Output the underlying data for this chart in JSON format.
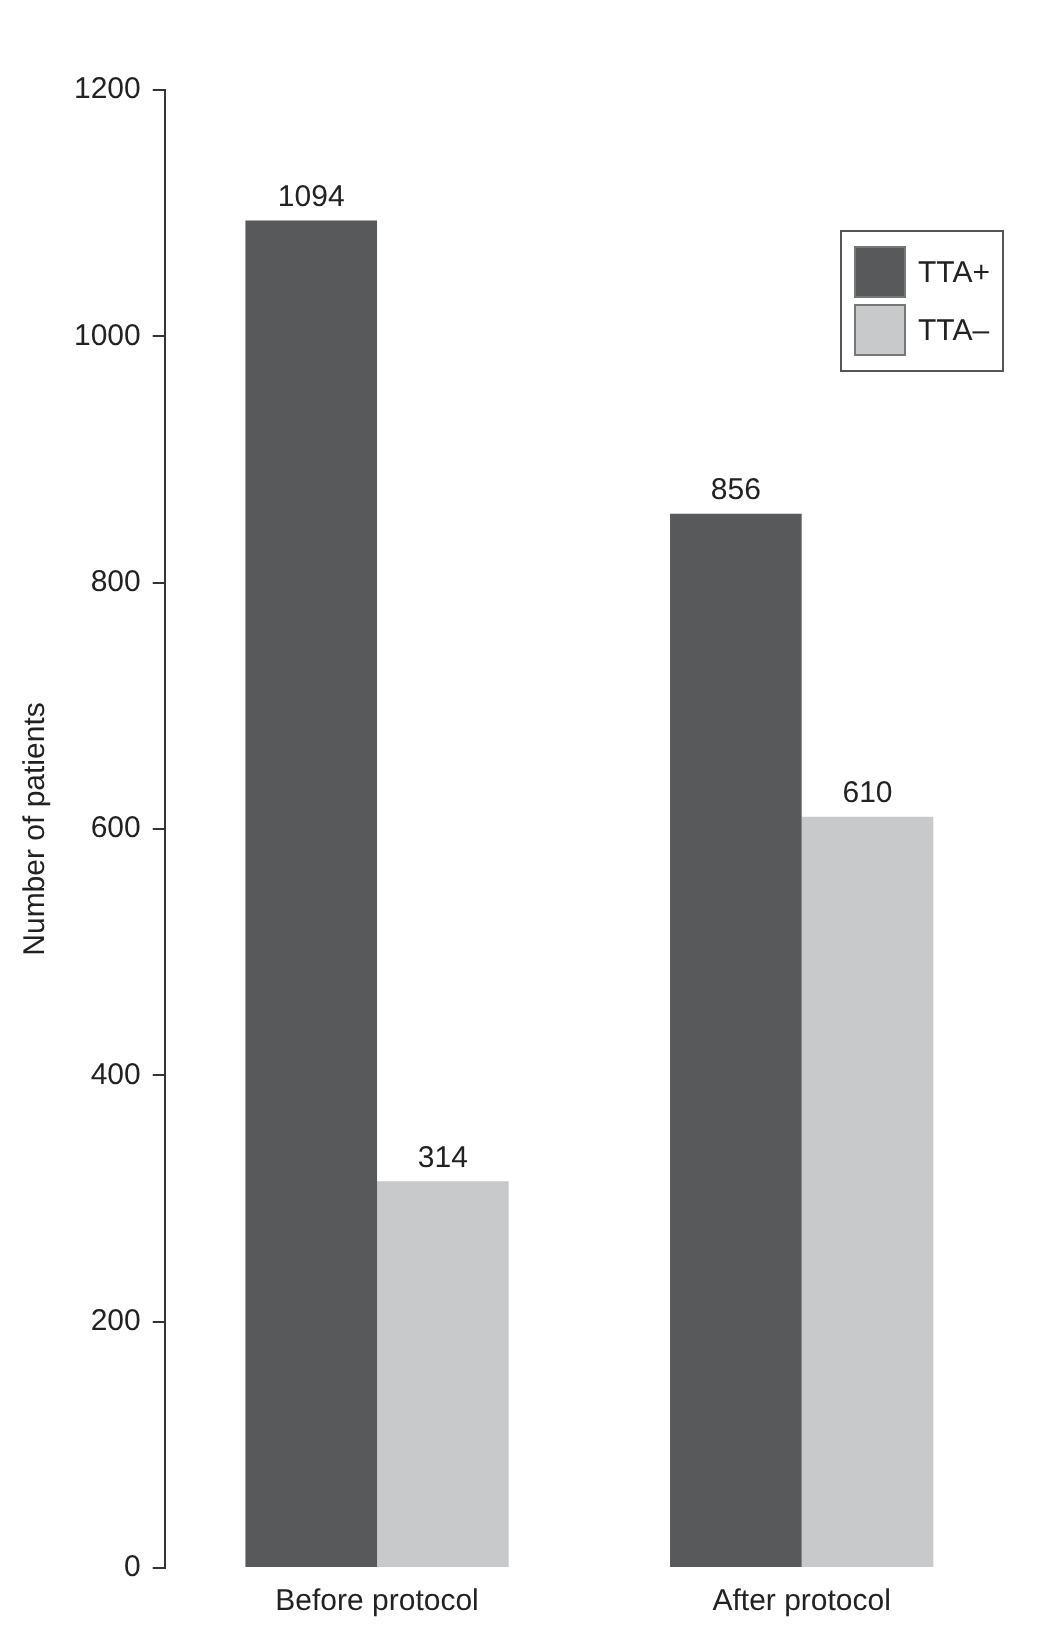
{
  "chart_data": {
    "type": "bar",
    "ylabel": "Number of patients",
    "categories": [
      "Before protocol",
      "After protocol"
    ],
    "series": [
      {
        "name": "TTA+",
        "color": "#58595b",
        "values": [
          1094,
          856
        ]
      },
      {
        "name": "TTA–",
        "color": "#c8c9cb",
        "values": [
          314,
          610
        ]
      }
    ],
    "ylim": [
      0,
      1200
    ],
    "yticks": [
      0,
      200,
      400,
      600,
      800,
      1000,
      1200
    ],
    "grid": false,
    "legend": "top right",
    "data_labels": true
  }
}
